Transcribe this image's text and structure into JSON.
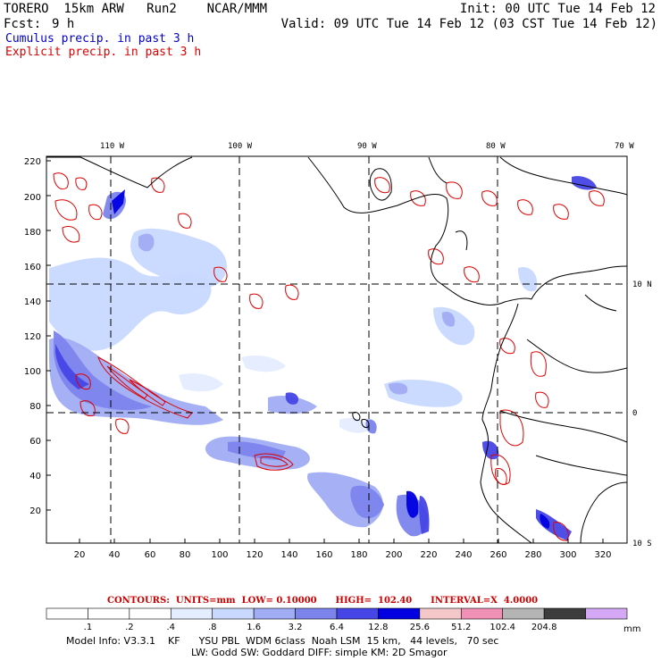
{
  "header": {
    "title_left": "TORERO  15km ARW   Run2    NCAR/MMM",
    "init": "Init: 00 UTC Tue 14 Feb 12",
    "fcst_label": "Fcst:",
    "fcst_value": "9 h",
    "valid": "Valid: 09 UTC Tue 14 Feb 12 (03 CST Tue 14 Feb 12)",
    "cumulus": "Cumulus precip. in past 3 h",
    "explicit": "Explicit precip. in past 3 h"
  },
  "top_lon_labels": [
    "110 W",
    "100 W",
    "90 W",
    "80 W",
    "70 W"
  ],
  "right_lat_labels": [
    "10 N",
    "0",
    "10 S"
  ],
  "y_ticks": [
    "220",
    "200",
    "180",
    "160",
    "140",
    "120",
    "100",
    "80",
    "60",
    "40",
    "20"
  ],
  "x_ticks": [
    "20",
    "40",
    "60",
    "80",
    "100",
    "120",
    "140",
    "160",
    "180",
    "200",
    "220",
    "240",
    "260",
    "280",
    "300",
    "320"
  ],
  "contour_info": "CONTOURS:  UNITS=mm  LOW= 0.10000      HIGH=  102.40      INTERVAL=X  4.0000",
  "colorbar": {
    "labels": [
      ".1",
      ".2",
      ".4",
      ".8",
      "1.6",
      "3.2",
      "6.4",
      "12.8",
      "25.6",
      "51.2",
      "102.4",
      "204.8"
    ],
    "unit": "mm",
    "colors": [
      "#ffffff",
      "#ffffff",
      "#ffffff",
      "#e4ecff",
      "#c8d8ff",
      "#a0acf4",
      "#7c84ec",
      "#4646e6",
      "#0000e0",
      "#f4c8c8",
      "#f090b4",
      "#b4b4b4",
      "#3c3c3c",
      "#d4a8f4"
    ]
  },
  "model_info_1": "Model Info: V3.3.1    KF      YSU PBL  WDM 6class  Noah LSM  15 km,   44 levels,   70 sec",
  "model_info_2": "LW: Godd SW: Goddard DIFF: simple KM: 2D Smagor"
}
